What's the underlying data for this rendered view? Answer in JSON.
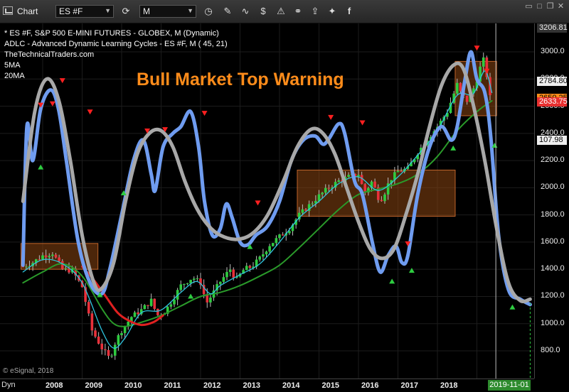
{
  "toolbar": {
    "title": "Chart",
    "symbol": "ES #F",
    "interval": "M",
    "icons": [
      "cycle-icon",
      "clock-icon",
      "pencil-icon",
      "wave-icon",
      "dollar-icon",
      "alert-icon",
      "link-icon",
      "share-icon",
      "twitter-icon",
      "facebook-icon"
    ]
  },
  "legend": {
    "line1": "* ES #F, S&P 500 E-MINI FUTURES - GLOBEX, M (Dynamic)",
    "line2": "ADLC - Advanced Dynamic Learning Cycles - ES #F, M (          45,            21)",
    "line3": "TheTechnicalTraders.com",
    "line4": "5MA",
    "line5": "20MA"
  },
  "headline": "Bull Market Top Warning",
  "copyright": "© eSignal, 2018",
  "corner_label": "Dyn",
  "date_tag": "2019-11-01",
  "colors": {
    "up_candle": "#2ecc40",
    "down_candle": "#e8303a",
    "cycle_blue": "#6f9cf0",
    "cycle_gray": "#a8a8a8",
    "ma5": "#2ec6e0",
    "ma20": "#2a9a2a",
    "box": "#8b4513",
    "headline": "#ff8c1a",
    "tag_red": "#e83030"
  },
  "chart_data": {
    "type": "candlestick",
    "title": "* ES #F, S&P 500 E-MINI FUTURES - GLOBEX, M (Dynamic)",
    "x_tick_labels": [
      "2008",
      "2009",
      "2010",
      "2011",
      "2012",
      "2013",
      "2014",
      "2015",
      "2016",
      "2017",
      "2018"
    ],
    "y_tick_labels": [
      "3000.0",
      "2800.0",
      "2600.0",
      "2400.0",
      "2200.0",
      "2000.0",
      "1800.0",
      "1600.0",
      "1400.0",
      "1200.0",
      "1000.0",
      "800.0"
    ],
    "ylim": [
      680,
      3230
    ],
    "price_tags": [
      {
        "label": "3206.81",
        "value": 3206.81,
        "style": "gray"
      },
      {
        "label": "2784.80",
        "value": 2784.8,
        "style": "white"
      },
      {
        "label": "2650.25",
        "value": 2660,
        "style": "orange"
      },
      {
        "label": "2633.75",
        "value": 2633.75,
        "style": "red"
      },
      {
        "label": "107.98",
        "value": 2352,
        "style": "white"
      }
    ],
    "monthly_close": [
      [
        2007.0,
        1420
      ],
      [
        2007.25,
        1450
      ],
      [
        2007.5,
        1500
      ],
      [
        2007.75,
        1520
      ],
      [
        2008.0,
        1400
      ],
      [
        2008.25,
        1390
      ],
      [
        2008.5,
        1270
      ],
      [
        2008.75,
        950
      ],
      [
        2009.0,
        820
      ],
      [
        2009.2,
        740
      ],
      [
        2009.35,
        870
      ],
      [
        2009.5,
        950
      ],
      [
        2009.75,
        1050
      ],
      [
        2010.0,
        1100
      ],
      [
        2010.25,
        1170
      ],
      [
        2010.4,
        1060
      ],
      [
        2010.6,
        1090
      ],
      [
        2010.8,
        1180
      ],
      [
        2011.0,
        1280
      ],
      [
        2011.3,
        1340
      ],
      [
        2011.5,
        1300
      ],
      [
        2011.65,
        1150
      ],
      [
        2011.85,
        1240
      ],
      [
        2012.0,
        1310
      ],
      [
        2012.25,
        1400
      ],
      [
        2012.4,
        1320
      ],
      [
        2012.6,
        1400
      ],
      [
        2012.8,
        1420
      ],
      [
        2013.0,
        1480
      ],
      [
        2013.25,
        1580
      ],
      [
        2013.5,
        1640
      ],
      [
        2013.75,
        1700
      ],
      [
        2014.0,
        1800
      ],
      [
        2014.25,
        1870
      ],
      [
        2014.5,
        1940
      ],
      [
        2014.75,
        2000
      ],
      [
        2015.0,
        2050
      ],
      [
        2015.25,
        2080
      ],
      [
        2015.5,
        2100
      ],
      [
        2015.65,
        1960
      ],
      [
        2015.85,
        2050
      ],
      [
        2016.0,
        1930
      ],
      [
        2016.1,
        1920
      ],
      [
        2016.3,
        2060
      ],
      [
        2016.5,
        2120
      ],
      [
        2016.75,
        2140
      ],
      [
        2017.0,
        2260
      ],
      [
        2017.25,
        2360
      ],
      [
        2017.5,
        2450
      ],
      [
        2017.75,
        2560
      ],
      [
        2018.0,
        2760
      ],
      [
        2018.1,
        2690
      ],
      [
        2018.25,
        2640
      ],
      [
        2018.45,
        2750
      ],
      [
        2018.6,
        2900
      ],
      [
        2018.7,
        2960
      ],
      [
        2018.8,
        2690
      ],
      [
        2018.88,
        2630
      ]
    ],
    "ma5": [
      [
        2007.0,
        1380
      ],
      [
        2007.5,
        1470
      ],
      [
        2008.0,
        1440
      ],
      [
        2008.5,
        1300
      ],
      [
        2009.0,
        950
      ],
      [
        2009.3,
        820
      ],
      [
        2009.6,
        900
      ],
      [
        2010.0,
        1080
      ],
      [
        2010.5,
        1100
      ],
      [
        2011.0,
        1230
      ],
      [
        2011.4,
        1310
      ],
      [
        2011.75,
        1220
      ],
      [
        2012.0,
        1280
      ],
      [
        2012.5,
        1360
      ],
      [
        2013.0,
        1440
      ],
      [
        2013.5,
        1600
      ],
      [
        2014.0,
        1780
      ],
      [
        2014.5,
        1900
      ],
      [
        2015.0,
        2030
      ],
      [
        2015.5,
        2080
      ],
      [
        2016.0,
        1980
      ],
      [
        2016.5,
        2080
      ],
      [
        2017.0,
        2240
      ],
      [
        2017.5,
        2420
      ],
      [
        2018.0,
        2680
      ],
      [
        2018.4,
        2690
      ],
      [
        2018.7,
        2860
      ],
      [
        2018.88,
        2700
      ]
    ],
    "ma20": [
      [
        2007.0,
        1300
      ],
      [
        2007.5,
        1380
      ],
      [
        2008.0,
        1440
      ],
      [
        2008.5,
        1350
      ],
      [
        2009.0,
        1110
      ],
      [
        2009.3,
        1000
      ],
      [
        2009.6,
        980
      ],
      [
        2010.0,
        1010
      ],
      [
        2010.5,
        1060
      ],
      [
        2011.0,
        1130
      ],
      [
        2011.5,
        1200
      ],
      [
        2012.0,
        1230
      ],
      [
        2012.5,
        1280
      ],
      [
        2013.0,
        1350
      ],
      [
        2013.5,
        1430
      ],
      [
        2014.0,
        1560
      ],
      [
        2014.5,
        1700
      ],
      [
        2015.0,
        1840
      ],
      [
        2015.5,
        1950
      ],
      [
        2016.0,
        1990
      ],
      [
        2016.5,
        2030
      ],
      [
        2017.0,
        2100
      ],
      [
        2017.5,
        2230
      ],
      [
        2018.0,
        2420
      ],
      [
        2018.5,
        2560
      ],
      [
        2018.88,
        2640
      ]
    ],
    "cycle_blue": [
      [
        2007.0,
        1430
      ],
      [
        2007.1,
        2450
      ],
      [
        2007.25,
        2200
      ],
      [
        2007.45,
        2580
      ],
      [
        2007.7,
        2720
      ],
      [
        2007.9,
        2580
      ],
      [
        2008.1,
        2200
      ],
      [
        2008.4,
        1600
      ],
      [
        2008.7,
        1300
      ],
      [
        2009.0,
        1220
      ],
      [
        2009.2,
        1400
      ],
      [
        2009.5,
        1800
      ],
      [
        2009.8,
        2200
      ],
      [
        2010.05,
        2350
      ],
      [
        2010.25,
        2100
      ],
      [
        2010.35,
        1980
      ],
      [
        2010.55,
        2300
      ],
      [
        2010.8,
        2400
      ],
      [
        2011.0,
        2450
      ],
      [
        2011.25,
        2560
      ],
      [
        2011.45,
        2300
      ],
      [
        2011.6,
        1900
      ],
      [
        2011.8,
        1650
      ],
      [
        2012.0,
        1700
      ],
      [
        2012.15,
        1880
      ],
      [
        2012.3,
        1780
      ],
      [
        2012.5,
        1600
      ],
      [
        2012.7,
        1580
      ],
      [
        2012.9,
        1650
      ],
      [
        2013.2,
        1720
      ],
      [
        2013.5,
        1900
      ],
      [
        2013.8,
        2200
      ],
      [
        2014.1,
        2350
      ],
      [
        2014.4,
        2380
      ],
      [
        2014.6,
        2320
      ],
      [
        2014.75,
        2360
      ],
      [
        2015.0,
        2470
      ],
      [
        2015.15,
        2400
      ],
      [
        2015.4,
        2050
      ],
      [
        2015.6,
        1950
      ],
      [
        2015.85,
        1600
      ],
      [
        2016.05,
        1380
      ],
      [
        2016.25,
        1500
      ],
      [
        2016.45,
        1570
      ],
      [
        2016.6,
        1450
      ],
      [
        2016.75,
        1500
      ],
      [
        2017.0,
        1950
      ],
      [
        2017.3,
        2300
      ],
      [
        2017.6,
        2450
      ],
      [
        2017.85,
        2350
      ],
      [
        2018.0,
        2450
      ],
      [
        2018.2,
        2800
      ],
      [
        2018.35,
        3000
      ],
      [
        2018.5,
        2800
      ],
      [
        2018.7,
        2700
      ],
      [
        2018.85,
        2380
      ],
      [
        2019.05,
        1650
      ],
      [
        2019.3,
        1250
      ],
      [
        2019.6,
        1180
      ],
      [
        2019.85,
        1140
      ]
    ],
    "cycle_gray": [
      [
        2007.0,
        1900
      ],
      [
        2007.3,
        2560
      ],
      [
        2007.6,
        2800
      ],
      [
        2007.9,
        2650
      ],
      [
        2008.2,
        2200
      ],
      [
        2008.5,
        1650
      ],
      [
        2008.8,
        1300
      ],
      [
        2009.0,
        1260
      ],
      [
        2009.3,
        1450
      ],
      [
        2009.6,
        1900
      ],
      [
        2009.9,
        2250
      ],
      [
        2010.2,
        2400
      ],
      [
        2010.5,
        2420
      ],
      [
        2010.8,
        2300
      ],
      [
        2011.1,
        2050
      ],
      [
        2011.4,
        1850
      ],
      [
        2011.7,
        1720
      ],
      [
        2012.0,
        1650
      ],
      [
        2012.4,
        1620
      ],
      [
        2012.8,
        1660
      ],
      [
        2013.2,
        1800
      ],
      [
        2013.6,
        2050
      ],
      [
        2013.95,
        2300
      ],
      [
        2014.3,
        2430
      ],
      [
        2014.6,
        2400
      ],
      [
        2014.9,
        2250
      ],
      [
        2015.2,
        2000
      ],
      [
        2015.5,
        1750
      ],
      [
        2015.8,
        1550
      ],
      [
        2016.1,
        1480
      ],
      [
        2016.4,
        1550
      ],
      [
        2016.7,
        1800
      ],
      [
        2017.0,
        2100
      ],
      [
        2017.3,
        2450
      ],
      [
        2017.6,
        2750
      ],
      [
        2017.9,
        2900
      ],
      [
        2018.15,
        2880
      ],
      [
        2018.4,
        2620
      ],
      [
        2018.7,
        2200
      ],
      [
        2019.0,
        1700
      ],
      [
        2019.3,
        1300
      ],
      [
        2019.6,
        1170
      ],
      [
        2019.85,
        1180
      ]
    ],
    "red_curve": [
      [
        2008.5,
        1420
      ],
      [
        2008.8,
        1320
      ],
      [
        2009.1,
        1200
      ],
      [
        2009.4,
        1080
      ],
      [
        2009.7,
        1020
      ],
      [
        2010.0,
        990
      ],
      [
        2010.3,
        1010
      ],
      [
        2010.55,
        1060
      ]
    ],
    "boxes": [
      {
        "x0": 2006.95,
        "x1": 2008.9,
        "y0": 1400,
        "y1": 1590
      },
      {
        "x0": 2013.95,
        "x1": 2017.95,
        "y0": 1790,
        "y1": 2130
      },
      {
        "x0": 2017.95,
        "x1": 2019.0,
        "y0": 2530,
        "y1": 2930
      }
    ],
    "red_markers": [
      [
        2007.45,
        2610
      ],
      [
        2007.75,
        2620
      ],
      [
        2008.0,
        2790
      ],
      [
        2008.7,
        2560
      ],
      [
        2010.15,
        2420
      ],
      [
        2010.6,
        2430
      ],
      [
        2011.6,
        2550
      ],
      [
        2012.95,
        1890
      ],
      [
        2014.8,
        2520
      ],
      [
        2015.6,
        2480
      ],
      [
        2016.75,
        1590
      ],
      [
        2018.5,
        3030
      ],
      [
        2018.75,
        2860
      ]
    ],
    "green_markers": [
      [
        2007.45,
        2150
      ],
      [
        2008.95,
        1210
      ],
      [
        2009.55,
        1960
      ],
      [
        2011.25,
        1200
      ],
      [
        2012.75,
        1565
      ],
      [
        2016.35,
        1310
      ],
      [
        2016.85,
        1390
      ],
      [
        2017.9,
        2290
      ],
      [
        2018.95,
        2310
      ],
      [
        2019.4,
        1120
      ]
    ]
  }
}
